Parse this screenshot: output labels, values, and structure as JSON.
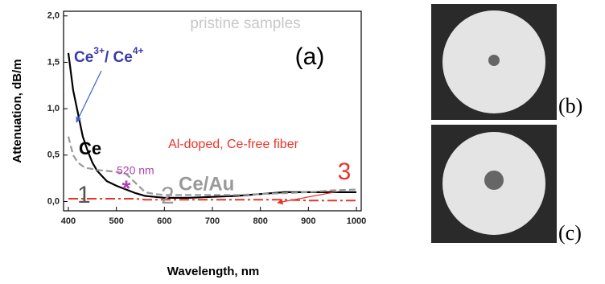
{
  "chart_data": {
    "type": "line",
    "x_label": "Wavelength, nm",
    "y_label": "Attenuation, dB/m",
    "x": [
      400,
      410,
      420,
      430,
      440,
      450,
      460,
      480,
      500,
      520,
      540,
      560,
      580,
      600,
      650,
      700,
      750,
      800,
      850,
      900,
      950,
      1000
    ],
    "series": [
      {
        "name": "Ce",
        "color": "#000000",
        "values": [
          1.6,
          1.2,
          0.95,
          0.7,
          0.55,
          0.42,
          0.33,
          0.22,
          0.17,
          0.13,
          0.09,
          0.06,
          0.05,
          0.04,
          0.04,
          0.05,
          0.06,
          0.08,
          0.1,
          0.1,
          0.1,
          0.1
        ]
      },
      {
        "name": "Ce/Au",
        "color": "#999999",
        "values": [
          0.7,
          0.5,
          0.42,
          0.38,
          0.36,
          0.35,
          0.34,
          0.33,
          0.32,
          0.3,
          0.2,
          0.1,
          0.08,
          0.07,
          0.07,
          0.07,
          0.07,
          0.08,
          0.09,
          0.1,
          0.12,
          0.13
        ]
      },
      {
        "name": "Al-doped, Ce-free fiber",
        "color": "#e8332a",
        "values": [
          0.03,
          0.03,
          0.03,
          0.03,
          0.03,
          0.03,
          0.03,
          0.03,
          0.03,
          0.03,
          0.03,
          0.02,
          0.02,
          0.02,
          0.02,
          0.02,
          0.02,
          0.02,
          0.02,
          0.01,
          0.01,
          0.01
        ]
      }
    ],
    "xlim": [
      390,
      1010
    ],
    "xticks": [
      400,
      500,
      600,
      700,
      800,
      900,
      1000
    ],
    "ylim": [
      -0.1,
      2.05
    ],
    "yticks": [
      {
        "value": 0,
        "label": "0,0"
      },
      {
        "value": 0.5,
        "label": "0,5"
      },
      {
        "value": 1,
        "label": "1,0"
      },
      {
        "value": 1.5,
        "label": "1,5"
      },
      {
        "value": 2,
        "label": "2,0"
      }
    ],
    "annotations": [
      "pristine samples",
      "(a)",
      "Ce",
      "3+",
      "/ Ce",
      "4+",
      "520 nm",
      "*",
      "1",
      "2",
      "3"
    ]
  },
  "panels": [
    "(b)",
    "(c)"
  ]
}
